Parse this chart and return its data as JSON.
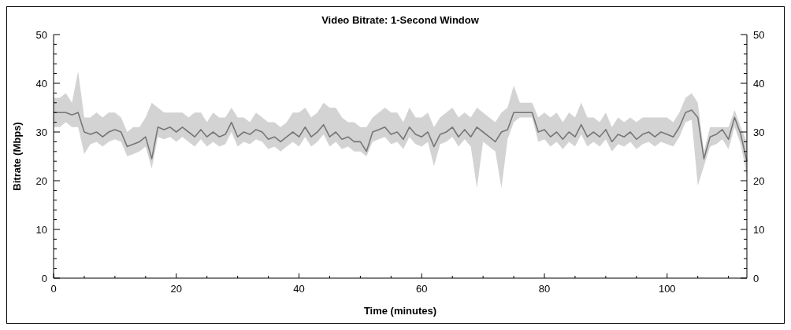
{
  "chart_data": {
    "type": "line",
    "title": "Video Bitrate: 1-Second Window",
    "xlabel": "Time (minutes)",
    "ylabel": "Bitrate (Mbps)",
    "x": [
      0,
      1,
      2,
      3,
      4,
      5,
      6,
      7,
      8,
      9,
      10,
      11,
      12,
      13,
      14,
      15,
      16,
      17,
      18,
      19,
      20,
      21,
      22,
      23,
      24,
      25,
      26,
      27,
      28,
      29,
      30,
      31,
      32,
      33,
      34,
      35,
      36,
      37,
      38,
      39,
      40,
      41,
      42,
      43,
      44,
      45,
      46,
      47,
      48,
      49,
      50,
      51,
      52,
      53,
      54,
      55,
      56,
      57,
      58,
      59,
      60,
      61,
      62,
      63,
      64,
      65,
      66,
      67,
      68,
      69,
      70,
      71,
      72,
      73,
      74,
      75,
      76,
      77,
      78,
      79,
      80,
      81,
      82,
      83,
      84,
      85,
      86,
      87,
      88,
      89,
      90,
      91,
      92,
      93,
      94,
      95,
      96,
      97,
      98,
      99,
      100,
      101,
      102,
      103,
      104,
      105,
      106,
      107,
      108,
      109,
      110,
      111,
      112,
      113
    ],
    "series": [
      {
        "color": "#777777",
        "values": [
          34,
          34,
          34,
          33.5,
          34,
          30,
          29.5,
          30,
          29,
          30,
          30.5,
          30,
          27,
          27.5,
          28,
          29,
          24.5,
          31,
          30.5,
          31,
          30,
          31,
          30,
          29,
          30.5,
          29,
          30,
          29,
          29.5,
          32,
          29,
          30,
          29.5,
          30.5,
          30,
          28.5,
          29,
          28,
          29,
          30,
          29,
          31,
          29,
          30,
          31.5,
          29,
          30,
          28.5,
          29,
          28,
          28,
          26,
          30,
          30.5,
          31,
          29.5,
          30,
          28.5,
          31,
          29.5,
          29,
          30,
          27,
          29.5,
          30,
          31,
          29,
          30.5,
          29,
          31,
          30,
          29,
          28,
          30,
          30.5,
          34,
          34,
          34,
          34,
          30,
          30.5,
          29,
          30,
          28.5,
          30,
          29,
          31.5,
          29,
          30,
          29,
          30.5,
          28,
          29.5,
          29,
          30,
          28.5,
          29.5,
          30,
          29,
          30,
          29.5,
          29,
          31,
          34,
          34.5,
          33,
          24.5,
          29,
          29.5,
          30.5,
          28.5,
          33,
          29.5,
          24
        ],
        "upper": [
          37,
          37,
          38,
          36,
          42.5,
          33,
          33,
          34,
          33,
          34,
          34,
          33,
          30,
          31,
          31,
          33,
          36,
          35,
          34,
          34,
          34,
          34,
          33,
          34,
          34,
          32,
          34,
          33,
          33,
          35,
          33,
          33,
          32,
          34,
          33,
          32,
          32,
          31,
          32,
          34,
          34,
          35,
          33,
          34,
          36,
          35,
          35,
          33,
          32,
          32,
          31,
          31,
          33,
          34,
          35,
          34,
          34,
          32,
          35,
          33,
          33,
          34,
          31,
          33,
          34,
          35,
          33,
          34,
          33,
          35,
          34,
          33,
          32,
          34,
          35,
          39.5,
          36,
          36,
          36,
          33,
          34,
          33,
          34,
          32,
          34,
          33,
          36,
          33,
          33,
          32,
          34,
          31,
          33,
          32,
          33,
          32,
          33,
          33,
          33,
          33,
          33,
          32,
          34,
          37,
          38,
          36,
          26,
          31,
          31,
          31,
          31,
          34.5,
          31,
          28
        ],
        "lower": [
          31,
          31,
          32,
          31,
          31,
          25.5,
          27.5,
          28,
          27,
          28,
          28.5,
          28,
          25,
          25.5,
          26,
          27,
          22.5,
          29,
          28.5,
          29,
          28,
          29,
          28,
          27,
          28.5,
          27,
          28,
          27,
          27.5,
          30,
          27,
          28,
          27.5,
          28.5,
          28,
          26.5,
          27,
          26,
          27,
          28,
          27,
          29,
          27,
          28,
          29.5,
          27,
          28,
          26.5,
          27,
          26,
          26,
          25,
          28,
          28.5,
          29,
          27.5,
          28,
          26.5,
          29,
          27.5,
          27,
          28,
          23,
          27.5,
          28,
          29,
          27,
          28.5,
          27,
          18.5,
          28,
          27,
          26,
          18.5,
          28.5,
          32,
          33,
          33,
          33,
          28,
          28.5,
          27,
          28,
          26.5,
          28,
          27,
          29.5,
          27,
          28,
          27,
          28.5,
          26,
          27.5,
          27,
          28,
          26.5,
          27.5,
          28,
          27,
          28,
          27.5,
          27,
          29,
          32,
          32.5,
          19,
          23,
          27,
          27.5,
          28.5,
          26.5,
          31,
          27.5,
          21
        ]
      }
    ],
    "xlim": [
      0,
      113
    ],
    "xticks": [
      0,
      {
        "value": 5,
        "label": null
      },
      {
        "value": 10,
        "label": null
      },
      {
        "value": 15,
        "label": null
      },
      20,
      {
        "value": 25,
        "label": null
      },
      {
        "value": 30,
        "label": null
      },
      {
        "value": 35,
        "label": null
      },
      40,
      {
        "value": 45,
        "label": null
      },
      {
        "value": 50,
        "label": null
      },
      {
        "value": 55,
        "label": null
      },
      60,
      {
        "value": 65,
        "label": null
      },
      {
        "value": 70,
        "label": null
      },
      {
        "value": 75,
        "label": null
      },
      80,
      {
        "value": 85,
        "label": null
      },
      {
        "value": 90,
        "label": null
      },
      {
        "value": 95,
        "label": null
      },
      100,
      {
        "value": 105,
        "label": null
      },
      {
        "value": 110,
        "label": null
      }
    ],
    "ylim": [
      0,
      50
    ],
    "yticks": [
      0,
      {
        "value": 2,
        "label": null
      },
      {
        "value": 4,
        "label": null
      },
      {
        "value": 6,
        "label": null
      },
      {
        "value": 8,
        "label": null
      },
      10,
      {
        "value": 12,
        "label": null
      },
      {
        "value": 14,
        "label": null
      },
      {
        "value": 16,
        "label": null
      },
      {
        "value": 18,
        "label": null
      },
      20,
      {
        "value": 22,
        "label": null
      },
      {
        "value": 24,
        "label": null
      },
      {
        "value": 26,
        "label": null
      },
      {
        "value": 28,
        "label": null
      },
      30,
      {
        "value": 32,
        "label": null
      },
      {
        "value": 34,
        "label": null
      },
      {
        "value": 36,
        "label": null
      },
      {
        "value": 38,
        "label": null
      },
      40,
      {
        "value": 42,
        "label": null
      },
      {
        "value": 44,
        "label": null
      },
      {
        "value": 46,
        "label": null
      },
      {
        "value": 48,
        "label": null
      },
      50
    ],
    "y2lim": [
      0,
      50
    ],
    "y2ticks": [
      0,
      {
        "value": 2,
        "label": null
      },
      {
        "value": 4,
        "label": null
      },
      {
        "value": 6,
        "label": null
      },
      {
        "value": 8,
        "label": null
      },
      10,
      {
        "value": 12,
        "label": null
      },
      {
        "value": 14,
        "label": null
      },
      {
        "value": 16,
        "label": null
      },
      {
        "value": 18,
        "label": null
      },
      20,
      {
        "value": 22,
        "label": null
      },
      {
        "value": 24,
        "label": null
      },
      {
        "value": 26,
        "label": null
      },
      {
        "value": 28,
        "label": null
      },
      30,
      {
        "value": 32,
        "label": null
      },
      {
        "value": 34,
        "label": null
      },
      {
        "value": 36,
        "label": null
      },
      {
        "value": 38,
        "label": null
      },
      40,
      {
        "value": 42,
        "label": null
      },
      {
        "value": 44,
        "label": null
      },
      {
        "value": 46,
        "label": null
      },
      {
        "value": 48,
        "label": null
      },
      50
    ],
    "grid": false
  }
}
